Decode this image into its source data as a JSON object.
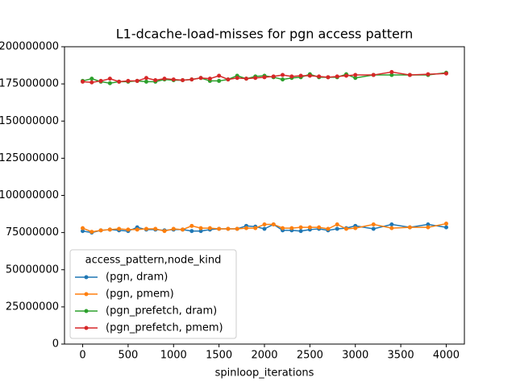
{
  "chart_data": {
    "type": "line",
    "title": "L1-dcache-load-misses for pgn access pattern",
    "x_label": "spinloop_iterations",
    "legend_title": "access_pattern,node_kind",
    "legend_position": "lower left",
    "x": [
      0,
      100,
      200,
      300,
      400,
      500,
      600,
      700,
      800,
      900,
      1000,
      1100,
      1200,
      1300,
      1400,
      1500,
      1600,
      1700,
      1800,
      1900,
      2000,
      2100,
      2200,
      2300,
      2400,
      2500,
      2600,
      2700,
      2800,
      2900,
      3000,
      3200,
      3400,
      3600,
      3800,
      4000
    ],
    "series": [
      {
        "name": "(pgn, dram)",
        "color": "#1f77b4",
        "values": [
          76000000,
          75000000,
          76500000,
          77000000,
          76500000,
          76000000,
          78500000,
          77000000,
          77000000,
          76500000,
          77000000,
          77000000,
          76000000,
          76000000,
          77000000,
          77500000,
          77500000,
          77500000,
          79500000,
          79000000,
          77500000,
          80500000,
          76500000,
          76500000,
          76000000,
          77000000,
          77500000,
          76500000,
          77500000,
          78000000,
          79500000,
          77500000,
          80500000,
          78500000,
          80500000,
          78500000
        ]
      },
      {
        "name": "(pgn, pmem)",
        "color": "#ff7f0e",
        "values": [
          78000000,
          75500000,
          76500000,
          77000000,
          77500000,
          77000000,
          77000000,
          77500000,
          77500000,
          76000000,
          77500000,
          77000000,
          79500000,
          78000000,
          78000000,
          77500000,
          77500000,
          77500000,
          78000000,
          78000000,
          80500000,
          80500000,
          78000000,
          78000000,
          78500000,
          78500000,
          78500000,
          77500000,
          80500000,
          77500000,
          78000000,
          80500000,
          78000000,
          78500000,
          78500000,
          81000000
        ]
      },
      {
        "name": "(pgn_prefetch, dram)",
        "color": "#2ca02c",
        "values": [
          177000000,
          178500000,
          176500000,
          175500000,
          176500000,
          176500000,
          177000000,
          176500000,
          176500000,
          178000000,
          177500000,
          177500000,
          178000000,
          179000000,
          177000000,
          177000000,
          178000000,
          180500000,
          178500000,
          180000000,
          180500000,
          179500000,
          178000000,
          179000000,
          179500000,
          181500000,
          179500000,
          179500000,
          179500000,
          181500000,
          179000000,
          181000000,
          181000000,
          181000000,
          181000000,
          182500000
        ]
      },
      {
        "name": "(pgn_prefetch, pmem)",
        "color": "#d62728",
        "values": [
          176500000,
          176000000,
          177000000,
          178500000,
          176500000,
          177000000,
          177000000,
          179000000,
          177500000,
          178500000,
          178000000,
          177500000,
          178000000,
          179000000,
          178500000,
          180500000,
          178000000,
          179000000,
          178500000,
          179000000,
          179500000,
          180000000,
          181000000,
          180000000,
          180500000,
          180500000,
          180000000,
          179500000,
          180000000,
          180500000,
          181000000,
          181000000,
          183000000,
          181000000,
          181500000,
          182000000
        ]
      }
    ],
    "xlim": [
      -200,
      4200
    ],
    "xticks": [
      0,
      500,
      1000,
      1500,
      2000,
      2500,
      3000,
      3500,
      4000
    ],
    "ylim": [
      0,
      200000000
    ],
    "yticks": [
      0,
      25000000,
      50000000,
      75000000,
      100000000,
      125000000,
      150000000,
      175000000,
      200000000
    ],
    "grid": false
  }
}
